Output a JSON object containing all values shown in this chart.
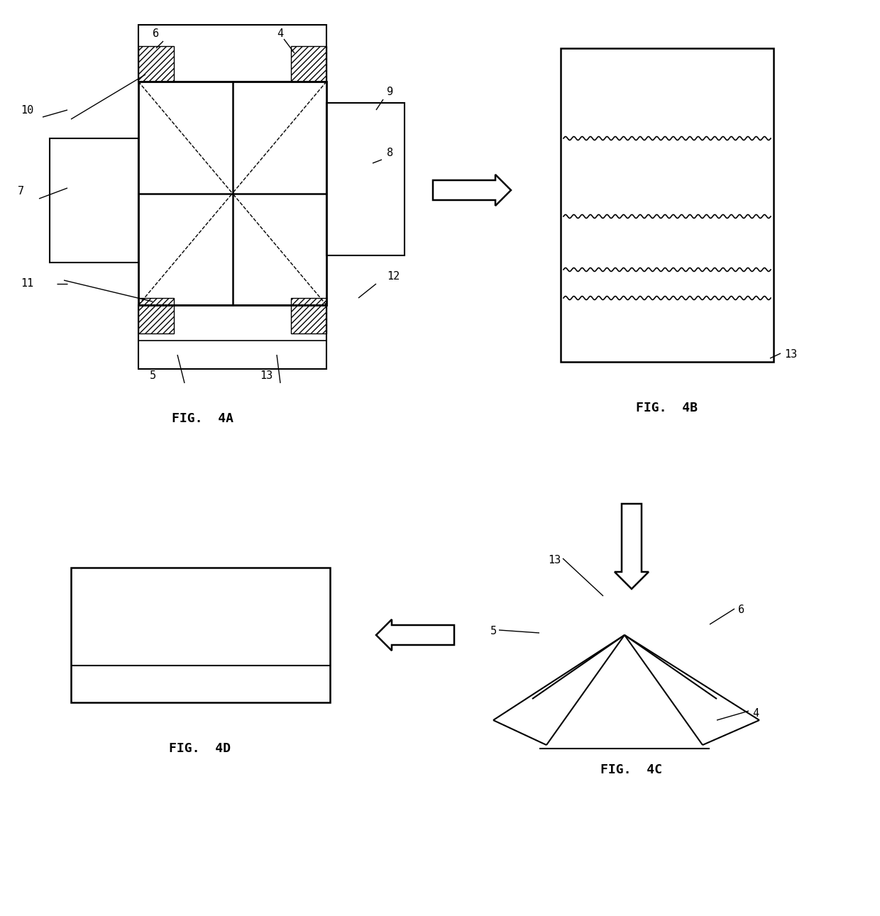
{
  "bg_color": "#ffffff",
  "fig_width": 12.4,
  "fig_height": 12.91,
  "fig4a_label": "FIG.  4A",
  "fig4b_label": "FIG.  4B",
  "fig4c_label": "FIG.  4C",
  "fig4d_label": "FIG.  4D",
  "line_color": "#000000"
}
